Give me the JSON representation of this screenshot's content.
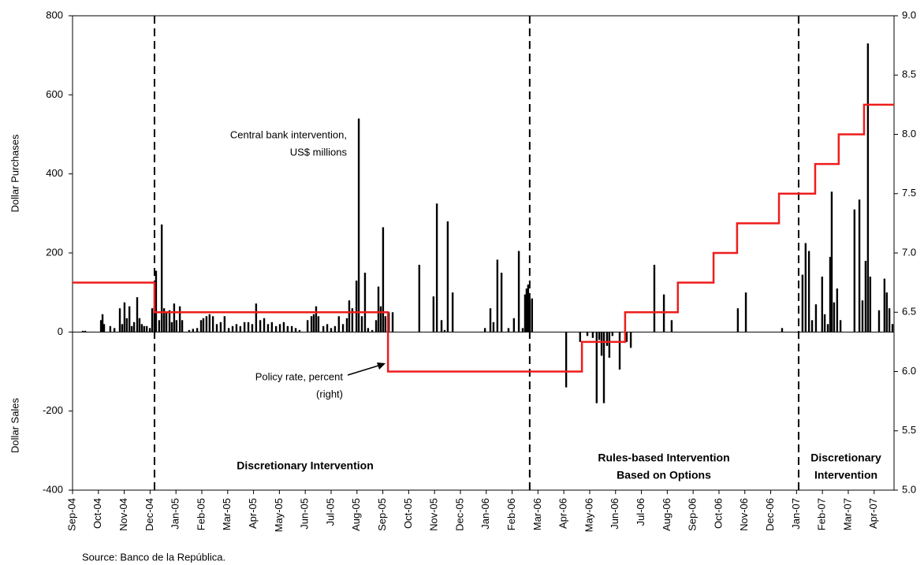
{
  "chart_data": {
    "type": "combo",
    "ylabels": [
      "Dollar Purchases",
      "Dollar Sales"
    ],
    "source": "Source: Banco de la República.",
    "xlim": [
      0,
      31.77
    ],
    "xticks": [
      {
        "value": 0,
        "label": "Sep-04"
      },
      {
        "value": 1,
        "label": "Oct-04"
      },
      {
        "value": 2,
        "label": "Nov-04"
      },
      {
        "value": 3,
        "label": "Dec-04"
      },
      {
        "value": 4,
        "label": "Jan-05"
      },
      {
        "value": 5,
        "label": "Feb-05"
      },
      {
        "value": 6,
        "label": "Mar-05"
      },
      {
        "value": 7,
        "label": "Apr-05"
      },
      {
        "value": 8,
        "label": "May-05"
      },
      {
        "value": 9,
        "label": "Jun-05"
      },
      {
        "value": 10,
        "label": "Jul-05"
      },
      {
        "value": 11,
        "label": "Aug-05"
      },
      {
        "value": 12,
        "label": "Sep-05"
      },
      {
        "value": 13,
        "label": "Oct-05"
      },
      {
        "value": 14,
        "label": "Nov-05"
      },
      {
        "value": 15,
        "label": "Dec-05"
      },
      {
        "value": 16,
        "label": "Jan-06"
      },
      {
        "value": 17,
        "label": "Feb-06"
      },
      {
        "value": 18,
        "label": "Mar-06"
      },
      {
        "value": 19,
        "label": "Apr-06"
      },
      {
        "value": 20,
        "label": "May-06"
      },
      {
        "value": 21,
        "label": "Jun-06"
      },
      {
        "value": 22,
        "label": "Jul-06"
      },
      {
        "value": 23,
        "label": "Aug-06"
      },
      {
        "value": 24,
        "label": "Sep-06"
      },
      {
        "value": 25,
        "label": "Oct-06"
      },
      {
        "value": 26,
        "label": "Nov-06"
      },
      {
        "value": 27,
        "label": "Dec-06"
      },
      {
        "value": 28,
        "label": "Jan-07"
      },
      {
        "value": 29,
        "label": "Feb-07"
      },
      {
        "value": 30,
        "label": "Mar-07"
      },
      {
        "value": 31,
        "label": "Apr-07"
      }
    ],
    "ylim": [
      -400,
      800
    ],
    "yticks": [
      -400,
      -200,
      0,
      200,
      400,
      600,
      800
    ],
    "y2lim": [
      5,
      9
    ],
    "y2ticks": [
      {
        "value": 5,
        "label": "5.0"
      },
      5.5,
      {
        "value": 6,
        "label": "6.0"
      },
      6.5,
      {
        "value": 7,
        "label": "7.0"
      },
      7.5,
      {
        "value": 8,
        "label": "8.0"
      },
      8.5,
      {
        "value": 9,
        "label": "9.0"
      }
    ],
    "series": [
      {
        "type": "bar",
        "color": "#000000",
        "x": [
          0.4,
          0.49,
          1.1,
          1.16,
          1.22,
          1.46,
          1.62,
          1.83,
          1.92,
          2.01,
          2.1,
          2.2,
          2.29,
          2.38,
          2.5,
          2.59,
          2.68,
          2.77,
          2.87,
          2.99,
          3.08,
          3.17,
          3.23,
          3.35,
          3.45,
          3.54,
          3.63,
          3.75,
          3.84,
          3.93,
          4.02,
          4.15,
          4.24,
          4.51,
          4.66,
          4.82,
          4.97,
          5.06,
          5.18,
          5.3,
          5.43,
          5.58,
          5.73,
          5.88,
          6.04,
          6.19,
          6.34,
          6.49,
          6.65,
          6.8,
          6.95,
          7.1,
          7.26,
          7.41,
          7.56,
          7.71,
          7.87,
          8.02,
          8.17,
          8.32,
          8.48,
          8.63,
          8.78,
          9.09,
          9.24,
          9.33,
          9.42,
          9.51,
          9.7,
          9.85,
          10.0,
          10.15,
          10.3,
          10.46,
          10.61,
          10.7,
          10.82,
          10.98,
          11.07,
          11.19,
          11.31,
          11.43,
          11.59,
          11.74,
          11.83,
          11.92,
          12.01,
          12.1,
          12.23,
          12.38,
          13.41,
          13.96,
          14.09,
          14.27,
          14.39,
          14.51,
          14.7,
          15.95,
          16.16,
          16.28,
          16.43,
          16.59,
          16.86,
          17.07,
          17.26,
          17.41,
          17.5,
          17.56,
          17.62,
          17.68,
          17.77,
          19.09,
          19.63,
          19.91,
          20.12,
          20.27,
          20.37,
          20.46,
          20.55,
          20.67,
          20.76,
          20.88,
          21.16,
          21.43,
          21.59,
          22.5,
          22.87,
          23.17,
          25.73,
          26.04,
          27.44,
          28.23,
          28.35,
          28.48,
          28.6,
          28.75,
          28.99,
          29.09,
          29.21,
          29.3,
          29.36,
          29.45,
          29.57,
          29.7,
          30.24,
          30.43,
          30.55,
          30.67,
          30.76,
          30.85,
          31.19,
          31.4,
          31.49,
          31.59,
          31.71
        ],
        "values": [
          3,
          3,
          30,
          45,
          20,
          15,
          10,
          60,
          20,
          75,
          35,
          65,
          15,
          25,
          88,
          35,
          20,
          15,
          15,
          10,
          60,
          65,
          155,
          30,
          272,
          60,
          50,
          55,
          25,
          72,
          30,
          65,
          30,
          5,
          8,
          10,
          30,
          35,
          40,
          45,
          40,
          20,
          25,
          40,
          10,
          15,
          20,
          15,
          25,
          25,
          20,
          72,
          30,
          35,
          20,
          25,
          15,
          20,
          25,
          15,
          15,
          10,
          5,
          30,
          40,
          45,
          65,
          40,
          15,
          20,
          10,
          15,
          40,
          20,
          35,
          80,
          60,
          130,
          540,
          40,
          150,
          10,
          5,
          30,
          115,
          65,
          265,
          40,
          50,
          50,
          170,
          90,
          325,
          30,
          5,
          280,
          100,
          10,
          60,
          25,
          183,
          150,
          10,
          35,
          205,
          10,
          95,
          110,
          120,
          80,
          85,
          -140,
          -25,
          -10,
          -15,
          -180,
          -20,
          -60,
          -180,
          -35,
          -65,
          -10,
          -95,
          -25,
          -40,
          170,
          95,
          30,
          60,
          100,
          10,
          145,
          225,
          205,
          30,
          70,
          140,
          45,
          20,
          190,
          355,
          75,
          110,
          30,
          310,
          335,
          80,
          180,
          730,
          140,
          55,
          135,
          100,
          60,
          20
        ]
      },
      {
        "type": "line",
        "axis": "y2",
        "step": "post",
        "color": "#ee1c1c",
        "x": [
          0,
          3.17,
          12.2,
          19.7,
          21.37,
          23.41,
          24.79,
          25.7,
          27.32,
          28.72,
          29.63,
          30.61,
          31.77
        ],
        "values": [
          6.75,
          6.5,
          6.0,
          6.25,
          6.5,
          6.75,
          7.0,
          7.25,
          7.5,
          7.75,
          8.0,
          8.25,
          8.25
        ]
      }
    ],
    "vlines": [
      3.17,
      17.68,
      28.08
    ],
    "annotations": [
      {
        "lines": [
          "Central bank intervention,",
          "US$ millions"
        ]
      },
      {
        "lines": [
          "Policy rate, percent",
          "(right)"
        ]
      },
      {
        "lines": [
          "Discretionary Intervention"
        ],
        "bold": true
      },
      {
        "lines": [
          "Rules-based Intervention",
          "Based on Options"
        ],
        "bold": true
      },
      {
        "lines": [
          "Discretionary",
          "Intervention"
        ],
        "bold": true
      }
    ]
  }
}
